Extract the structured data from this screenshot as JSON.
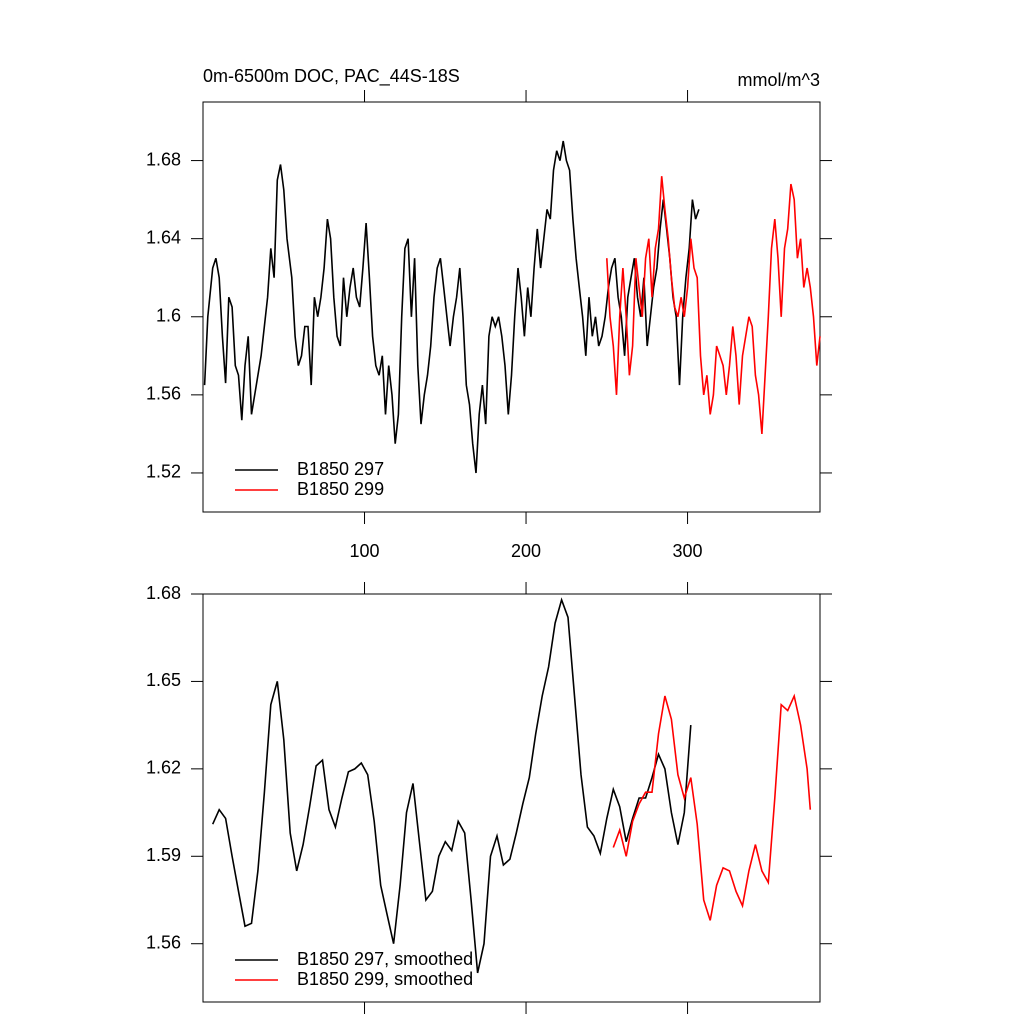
{
  "chart_data": [
    {
      "type": "line",
      "title": "0m-6500m DOC, PAC_44S-18S",
      "units": "mmol/m^3",
      "xlim": [
        0,
        382
      ],
      "xticks": [
        100,
        200,
        300
      ],
      "show_xtick_labels": true,
      "ylim": [
        1.5,
        1.71
      ],
      "yticks": [
        1.52,
        1.56,
        1.6,
        1.64,
        1.68
      ],
      "legend": "lower left",
      "series": [
        {
          "name": "B1850 297",
          "color": "#000000",
          "x": [
            1,
            3,
            6,
            8,
            10,
            12,
            14,
            16,
            18,
            20,
            22,
            24,
            26,
            28,
            30,
            33,
            36,
            40,
            42,
            44,
            46,
            48,
            50,
            52,
            55,
            57,
            59,
            61,
            63,
            65,
            67,
            69,
            71,
            73,
            75,
            77,
            79,
            81,
            83,
            85,
            87,
            89,
            91,
            93,
            95,
            97,
            99,
            101,
            103,
            105,
            107,
            109,
            111,
            113,
            115,
            117,
            119,
            121,
            123,
            125,
            127,
            129,
            131,
            133,
            135,
            137,
            139,
            141,
            143,
            145,
            147,
            149,
            151,
            153,
            155,
            157,
            159,
            161,
            163,
            165,
            167,
            169,
            171,
            173,
            175,
            177,
            179,
            181,
            183,
            185,
            187,
            189,
            191,
            193,
            195,
            197,
            199,
            201,
            203,
            205,
            207,
            209,
            211,
            213,
            215,
            217,
            219,
            221,
            223,
            225,
            227,
            229,
            231,
            233,
            235,
            237,
            239,
            241,
            243,
            245,
            247,
            249,
            251,
            253,
            255,
            257,
            259,
            261,
            263,
            265,
            267,
            269,
            271,
            273,
            275,
            277,
            279,
            281,
            283,
            285,
            287,
            289,
            291,
            293,
            295,
            297,
            299,
            301,
            303,
            305,
            307
          ],
          "values": [
            1.565,
            1.6,
            1.625,
            1.63,
            1.62,
            1.59,
            1.566,
            1.61,
            1.605,
            1.575,
            1.57,
            1.547,
            1.575,
            1.59,
            1.55,
            1.565,
            1.58,
            1.61,
            1.635,
            1.62,
            1.67,
            1.678,
            1.665,
            1.64,
            1.62,
            1.59,
            1.575,
            1.58,
            1.595,
            1.595,
            1.565,
            1.61,
            1.6,
            1.61,
            1.625,
            1.65,
            1.64,
            1.61,
            1.59,
            1.585,
            1.62,
            1.6,
            1.615,
            1.625,
            1.61,
            1.605,
            1.625,
            1.648,
            1.62,
            1.59,
            1.575,
            1.57,
            1.58,
            1.55,
            1.575,
            1.56,
            1.535,
            1.55,
            1.6,
            1.635,
            1.64,
            1.6,
            1.63,
            1.575,
            1.545,
            1.56,
            1.57,
            1.585,
            1.61,
            1.625,
            1.63,
            1.615,
            1.6,
            1.585,
            1.6,
            1.61,
            1.625,
            1.6,
            1.565,
            1.555,
            1.535,
            1.52,
            1.55,
            1.565,
            1.545,
            1.59,
            1.6,
            1.595,
            1.6,
            1.59,
            1.575,
            1.55,
            1.57,
            1.6,
            1.625,
            1.61,
            1.59,
            1.615,
            1.6,
            1.625,
            1.645,
            1.625,
            1.64,
            1.655,
            1.65,
            1.675,
            1.685,
            1.68,
            1.69,
            1.68,
            1.675,
            1.65,
            1.63,
            1.615,
            1.6,
            1.58,
            1.61,
            1.59,
            1.6,
            1.585,
            1.59,
            1.6,
            1.615,
            1.625,
            1.63,
            1.61,
            1.6,
            1.58,
            1.61,
            1.62,
            1.63,
            1.61,
            1.6,
            1.62,
            1.585,
            1.6,
            1.615,
            1.625,
            1.645,
            1.66,
            1.645,
            1.63,
            1.61,
            1.6,
            1.565,
            1.6,
            1.62,
            1.635,
            1.66,
            1.65,
            1.655
          ]
        },
        {
          "name": "B1850 299",
          "color": "#ff0000",
          "x": [
            250,
            252,
            254,
            256,
            258,
            260,
            262,
            264,
            266,
            268,
            270,
            272,
            274,
            276,
            278,
            280,
            282,
            284,
            286,
            288,
            290,
            292,
            294,
            296,
            298,
            300,
            302,
            304,
            306,
            308,
            310,
            312,
            314,
            316,
            318,
            320,
            322,
            324,
            326,
            328,
            330,
            332,
            334,
            336,
            338,
            340,
            342,
            344,
            346,
            348,
            350,
            352,
            354,
            356,
            358,
            360,
            362,
            364,
            366,
            368,
            370,
            372,
            374,
            376,
            378,
            380,
            382
          ],
          "values": [
            1.63,
            1.6,
            1.585,
            1.56,
            1.6,
            1.625,
            1.6,
            1.57,
            1.585,
            1.63,
            1.615,
            1.6,
            1.63,
            1.64,
            1.61,
            1.635,
            1.645,
            1.672,
            1.655,
            1.64,
            1.62,
            1.605,
            1.6,
            1.61,
            1.6,
            1.615,
            1.64,
            1.625,
            1.62,
            1.58,
            1.56,
            1.57,
            1.55,
            1.56,
            1.585,
            1.58,
            1.575,
            1.56,
            1.575,
            1.595,
            1.58,
            1.555,
            1.58,
            1.59,
            1.6,
            1.595,
            1.57,
            1.56,
            1.54,
            1.57,
            1.6,
            1.635,
            1.65,
            1.63,
            1.6,
            1.635,
            1.645,
            1.668,
            1.66,
            1.63,
            1.64,
            1.615,
            1.625,
            1.615,
            1.6,
            1.575,
            1.59
          ]
        }
      ]
    },
    {
      "type": "line",
      "xlim": [
        0,
        382
      ],
      "xticks": [
        100,
        200,
        300
      ],
      "show_xtick_labels": false,
      "ylim": [
        1.54,
        1.68
      ],
      "yticks": [
        1.56,
        1.59,
        1.62,
        1.65,
        1.68
      ],
      "legend": "lower left",
      "series": [
        {
          "name": "B1850 297, smoothed",
          "color": "#000000",
          "x": [
            6,
            10,
            14,
            18,
            22,
            26,
            30,
            34,
            38,
            42,
            46,
            50,
            54,
            58,
            62,
            66,
            70,
            74,
            78,
            82,
            86,
            90,
            94,
            98,
            102,
            106,
            110,
            114,
            118,
            122,
            126,
            130,
            134,
            138,
            142,
            146,
            150,
            154,
            158,
            162,
            166,
            170,
            174,
            178,
            182,
            186,
            190,
            194,
            198,
            202,
            206,
            210,
            214,
            218,
            222,
            226,
            230,
            234,
            238,
            242,
            246,
            250,
            254,
            258,
            262,
            266,
            270,
            274,
            278,
            282,
            286,
            290,
            294,
            298,
            302
          ],
          "values": [
            1.601,
            1.606,
            1.603,
            1.59,
            1.578,
            1.566,
            1.567,
            1.585,
            1.612,
            1.642,
            1.65,
            1.63,
            1.598,
            1.585,
            1.594,
            1.607,
            1.621,
            1.623,
            1.606,
            1.6,
            1.61,
            1.619,
            1.62,
            1.622,
            1.618,
            1.602,
            1.58,
            1.57,
            1.56,
            1.58,
            1.605,
            1.615,
            1.595,
            1.575,
            1.578,
            1.59,
            1.595,
            1.592,
            1.602,
            1.598,
            1.575,
            1.55,
            1.56,
            1.59,
            1.597,
            1.587,
            1.589,
            1.598,
            1.608,
            1.617,
            1.632,
            1.645,
            1.655,
            1.67,
            1.678,
            1.672,
            1.645,
            1.618,
            1.6,
            1.597,
            1.591,
            1.603,
            1.613,
            1.607,
            1.595,
            1.603,
            1.61,
            1.61,
            1.617,
            1.625,
            1.62,
            1.605,
            1.594,
            1.605,
            1.635
          ]
        },
        {
          "name": "B1850 299, smoothed",
          "color": "#ff0000",
          "x": [
            254,
            258,
            262,
            266,
            270,
            274,
            278,
            282,
            286,
            290,
            294,
            298,
            302,
            306,
            310,
            314,
            318,
            322,
            326,
            330,
            334,
            338,
            342,
            346,
            350,
            354,
            358,
            362,
            366,
            370,
            374,
            376
          ],
          "values": [
            1.593,
            1.599,
            1.59,
            1.602,
            1.608,
            1.612,
            1.612,
            1.632,
            1.645,
            1.637,
            1.618,
            1.61,
            1.617,
            1.601,
            1.575,
            1.568,
            1.58,
            1.586,
            1.585,
            1.578,
            1.573,
            1.585,
            1.594,
            1.585,
            1.581,
            1.61,
            1.642,
            1.64,
            1.645,
            1.635,
            1.62,
            1.606
          ]
        }
      ]
    }
  ]
}
